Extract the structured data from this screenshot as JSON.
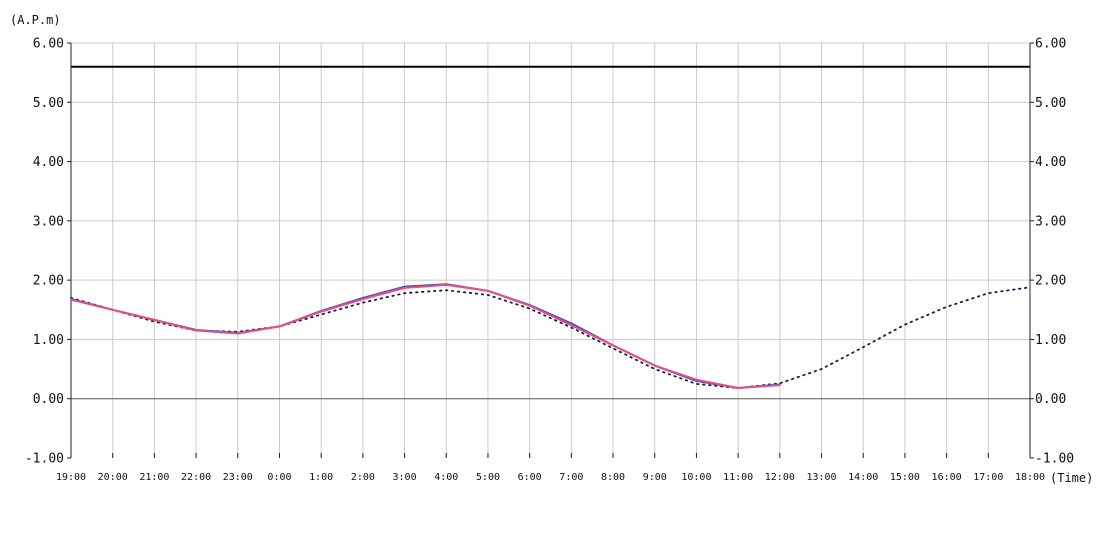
{
  "chart_data": {
    "type": "line",
    "ylabel": "(A.P.m)",
    "xlabel": "(Time)",
    "ylim": [
      -1.0,
      6.0
    ],
    "y_ticks": [
      "6.00",
      "5.00",
      "4.00",
      "3.00",
      "2.00",
      "1.00",
      "0.00",
      "-1.00"
    ],
    "categories": [
      "19:00",
      "20:00",
      "21:00",
      "22:00",
      "23:00",
      "0:00",
      "1:00",
      "2:00",
      "3:00",
      "4:00",
      "5:00",
      "6:00",
      "7:00",
      "8:00",
      "9:00",
      "10:00",
      "11:00",
      "12:00",
      "13:00",
      "14:00",
      "15:00",
      "16:00",
      "17:00",
      "18:00"
    ],
    "grid": true,
    "reference_lines": [
      {
        "value": 5.6,
        "color": "#000000"
      },
      {
        "value": 0.0,
        "color": "#555555"
      }
    ],
    "series": [
      {
        "style": "dotted",
        "color": "#1a1a4a",
        "values": [
          1.7,
          1.5,
          1.3,
          1.15,
          1.13,
          1.22,
          1.42,
          1.62,
          1.78,
          1.83,
          1.75,
          1.52,
          1.2,
          0.85,
          0.5,
          0.25,
          0.18,
          0.26,
          0.5,
          0.87,
          1.25,
          1.55,
          1.78,
          1.88
        ]
      },
      {
        "style": "solid",
        "color": "#3a4fd0",
        "values": [
          1.68,
          1.5,
          1.33,
          1.16,
          1.11,
          1.22,
          1.48,
          1.7,
          1.89,
          1.93,
          1.82,
          1.58,
          1.27,
          0.9,
          0.56,
          0.3,
          0.18,
          0.24,
          null,
          null,
          null,
          null,
          null,
          null
        ]
      },
      {
        "style": "solid",
        "color": "#e8507a",
        "values": [
          1.67,
          1.5,
          1.33,
          1.15,
          1.1,
          1.22,
          1.47,
          1.68,
          1.87,
          1.92,
          1.82,
          1.57,
          1.24,
          0.9,
          0.56,
          0.32,
          0.18,
          0.23,
          null,
          null,
          null,
          null,
          null,
          null
        ]
      }
    ]
  }
}
